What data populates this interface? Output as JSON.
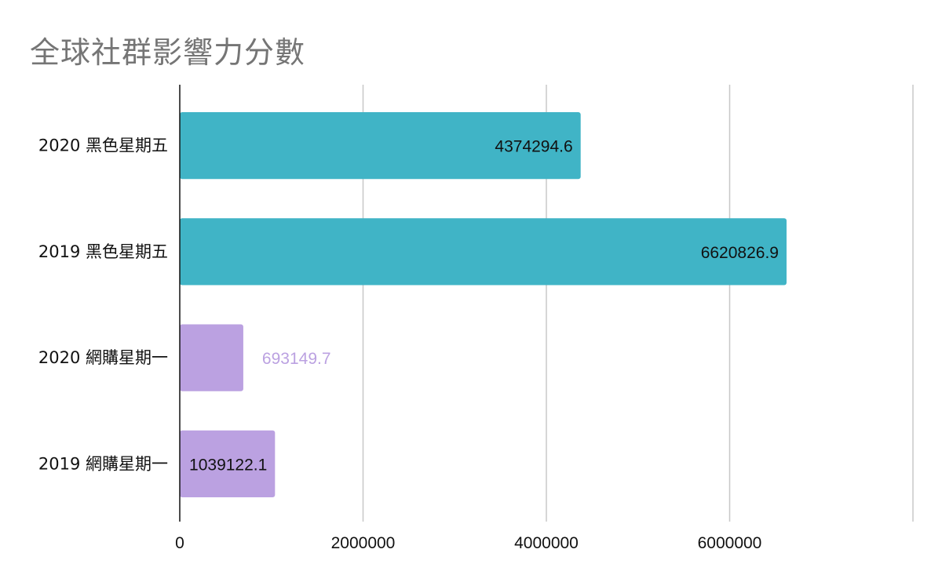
{
  "chart_data": {
    "type": "bar",
    "orientation": "horizontal",
    "title": "全球社群影響力分數",
    "categories": [
      "2020 黑色星期五",
      "2019 黑色星期五",
      "2020 網購星期一",
      "2019 網購星期一"
    ],
    "values": [
      4374294.6,
      6620826.9,
      693149.7,
      1039122.1
    ],
    "value_labels": [
      "4374294.6",
      "6620826.9",
      "693149.7",
      "1039122.1"
    ],
    "bar_colors": [
      "#40b4c6",
      "#40b4c6",
      "#bba1e1",
      "#bba1e1"
    ],
    "label_inside": [
      true,
      true,
      false,
      true
    ],
    "outside_label_color": "#bba1e1",
    "inside_label_color": "#111111",
    "x_ticks": [
      0,
      2000000,
      4000000,
      6000000
    ],
    "x_tick_labels": [
      "0",
      "2000000",
      "4000000",
      "6000000"
    ],
    "xlim": [
      0,
      8000000
    ],
    "grid": true,
    "grid_color": "#c8c8c8",
    "axis_color": "#111111",
    "xlabel": "",
    "ylabel": ""
  }
}
